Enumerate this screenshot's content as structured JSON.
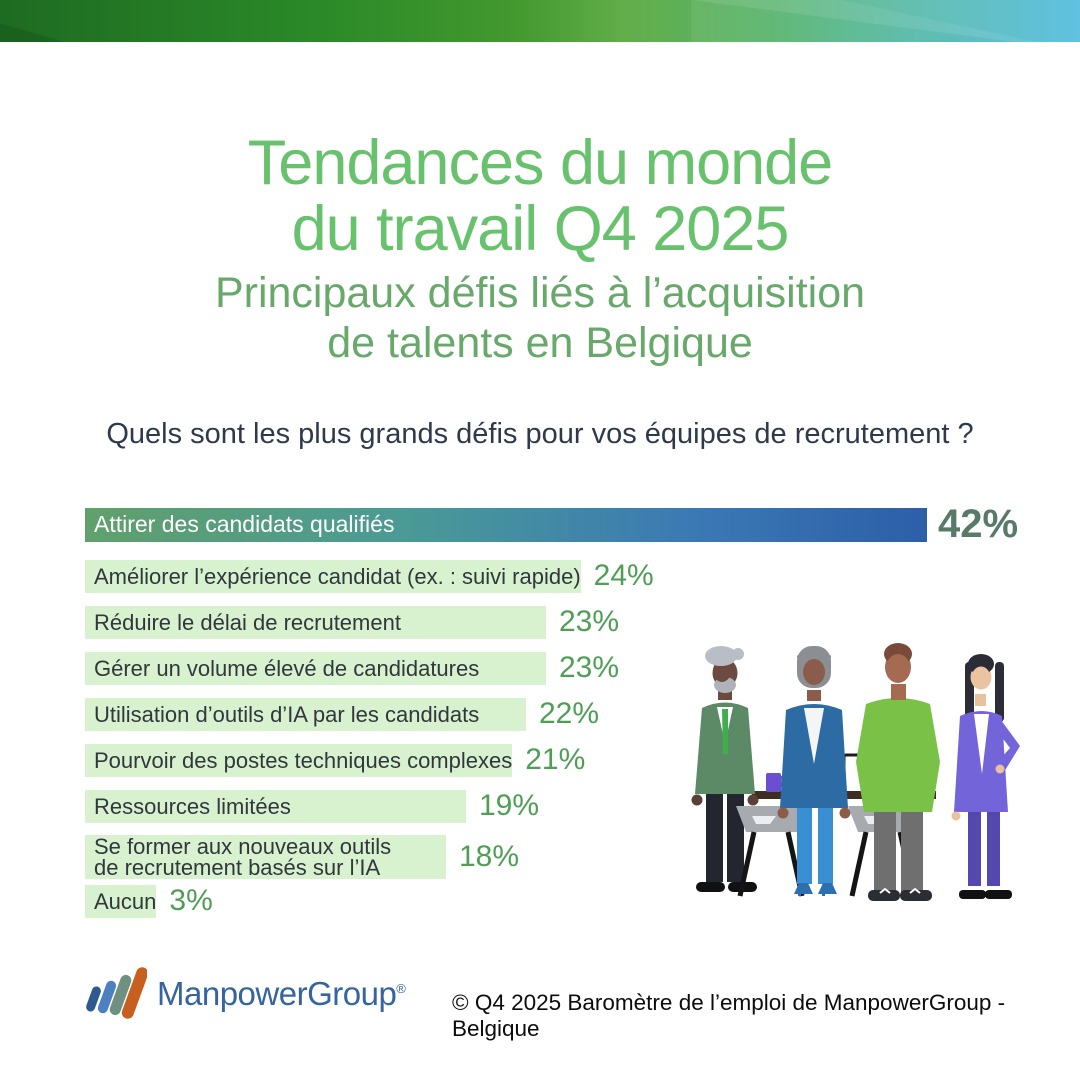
{
  "band": {
    "gradient": [
      "#1e6b22",
      "#2b8a28",
      "#44992f",
      "#62ae4a",
      "#57b46e",
      "#54b8a6",
      "#4ebade"
    ]
  },
  "title": {
    "line1": "Tendances du monde",
    "line2": "du travail Q4 2025",
    "color": "#68c16c"
  },
  "subtitle": {
    "line1": "Principaux défis liés à l’acquisition",
    "line2": "de talents en Belgique",
    "color": "#68a96b"
  },
  "question": {
    "text": "Quels sont les plus grands défis pour vos équipes de recrutement ?"
  },
  "chart_data": {
    "type": "bar",
    "orientation": "horizontal",
    "unit": "%",
    "max_value": 42,
    "bar_color": "#d8f2cf",
    "value_label_color": "#4f9e55",
    "highlight_gradient": [
      "#61a06b",
      "#4a9a96",
      "#3b79b4",
      "#2c5fa9"
    ],
    "highlight_value_color": "#587a68",
    "categories": [
      "Attirer des candidats qualifiés",
      "Améliorer l’expérience candidat (ex. : suivi rapide)",
      "Réduire le délai de recrutement",
      "Gérer un volume élevé de candidatures",
      "Utilisation d’outils d’IA par les candidats",
      "Pourvoir des postes techniques complexes",
      "Ressources limitées",
      "Se former aux nouveaux outils de recrutement basés sur l’IA",
      "Aucun"
    ],
    "values": [
      42,
      24,
      23,
      23,
      22,
      21,
      19,
      18,
      3
    ],
    "bars": [
      {
        "label": "Attirer des candidats qualifiés",
        "value": 42,
        "style": "highlight"
      },
      {
        "label": "Améliorer l’expérience candidat (ex. : suivi rapide)",
        "value": 24
      },
      {
        "label": "Réduire le délai de recrutement",
        "value": 23
      },
      {
        "label": "Gérer un volume élevé de candidatures",
        "value": 23
      },
      {
        "label": "Utilisation d’outils d’IA par les candidats",
        "value": 22
      },
      {
        "label": "Pourvoir des postes techniques complexes",
        "value": 21
      },
      {
        "label": "Ressources limitées",
        "value": 19
      },
      {
        "label": "Se former aux nouveaux outils",
        "label_line2": "de recrutement basés sur l’IA",
        "value": 18
      },
      {
        "label": "Aucun",
        "value": 3
      }
    ]
  },
  "footer": {
    "logo_text": "ManpowerGroup",
    "registered": "®",
    "logo_text_color": "#36649e",
    "logo_bar_colors": [
      "#2e5a8f",
      "#4c80c1",
      "#6e9080",
      "#c75f1e"
    ],
    "copyright": "© Q4 2025 Baromètre de l’emploi de ManpowerGroup - Belgique"
  }
}
